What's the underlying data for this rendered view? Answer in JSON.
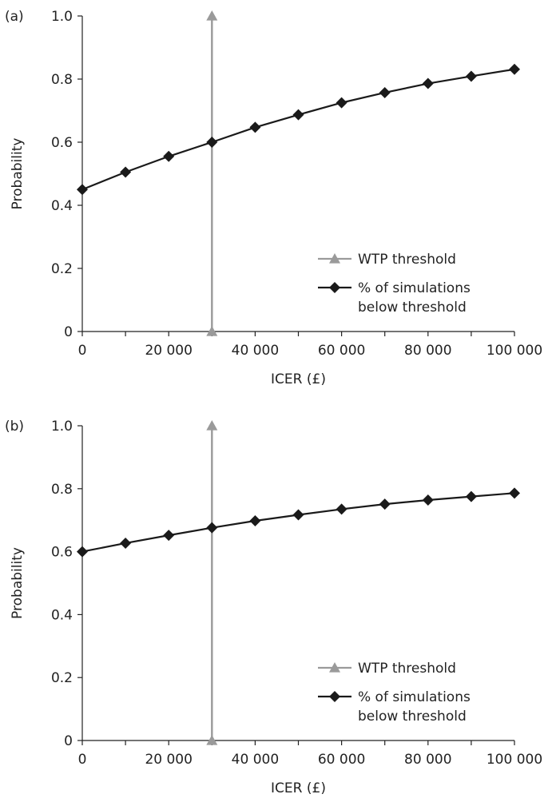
{
  "colors": {
    "series_line": "#1a1a1a",
    "threshold_line": "#9a9a9a",
    "axis": "#222222"
  },
  "chart_data": [
    {
      "panel_label": "(a)",
      "type": "line",
      "xlabel": "ICER (£)",
      "ylabel": "Probability",
      "xlim": [
        0,
        100000
      ],
      "ylim": [
        0,
        1.0
      ],
      "x_ticks": [
        0,
        20000,
        40000,
        60000,
        80000,
        100000
      ],
      "x_tick_labels": [
        "0",
        "20 000",
        "40 000",
        "60 000",
        "80 000",
        "100 000"
      ],
      "y_ticks": [
        0,
        0.2,
        0.4,
        0.6,
        0.8,
        1.0
      ],
      "y_tick_labels": [
        "0",
        "0.2",
        "0.4",
        "0.6",
        "0.8",
        "1.0"
      ],
      "grid": false,
      "legend_position": "bottom-right",
      "series": [
        {
          "name": "WTP threshold",
          "marker": "triangle",
          "x": [
            30000,
            30000
          ],
          "y": [
            0,
            1.0
          ]
        },
        {
          "name": "% of simulations\nbelow threshold",
          "marker": "diamond",
          "x": [
            0,
            10000,
            20000,
            30000,
            40000,
            50000,
            60000,
            70000,
            80000,
            90000,
            100000
          ],
          "y": [
            0.45,
            0.505,
            0.555,
            0.6,
            0.647,
            0.687,
            0.725,
            0.757,
            0.786,
            0.809,
            0.831
          ]
        }
      ]
    },
    {
      "panel_label": "(b)",
      "type": "line",
      "xlabel": "ICER (£)",
      "ylabel": "Probability",
      "xlim": [
        0,
        100000
      ],
      "ylim": [
        0,
        1.0
      ],
      "x_ticks": [
        0,
        20000,
        40000,
        60000,
        80000,
        100000
      ],
      "x_tick_labels": [
        "0",
        "20 000",
        "40 000",
        "60 000",
        "80 000",
        "100 000"
      ],
      "y_ticks": [
        0,
        0.2,
        0.4,
        0.6,
        0.8,
        1.0
      ],
      "y_tick_labels": [
        "0",
        "0.2",
        "0.4",
        "0.6",
        "0.8",
        "1.0"
      ],
      "grid": false,
      "legend_position": "bottom-right",
      "series": [
        {
          "name": "WTP threshold",
          "marker": "triangle",
          "x": [
            30000,
            30000
          ],
          "y": [
            0,
            1.0
          ]
        },
        {
          "name": "% of simulations\nbelow threshold",
          "marker": "diamond",
          "x": [
            0,
            10000,
            20000,
            30000,
            40000,
            50000,
            60000,
            70000,
            80000,
            90000,
            100000
          ],
          "y": [
            0.6,
            0.627,
            0.652,
            0.676,
            0.698,
            0.717,
            0.735,
            0.751,
            0.764,
            0.775,
            0.786
          ]
        }
      ]
    }
  ]
}
